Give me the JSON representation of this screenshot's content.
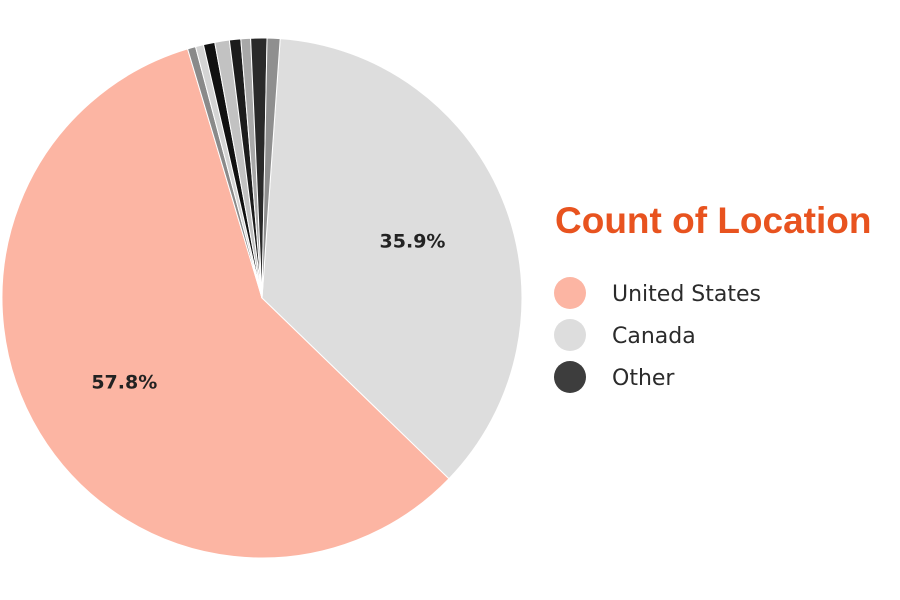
{
  "chart_data": {
    "type": "pie",
    "legend_title": "Count of Location",
    "legend_position": "right",
    "title_color": "#e8531f",
    "slices": [
      {
        "label": "Canada",
        "value": 35.9,
        "color": "#dddddd",
        "display": "35.9%",
        "show_label": true
      },
      {
        "label": "United States",
        "value": 57.8,
        "color": "#fcb5a3",
        "display": "57.8%",
        "show_label": true
      },
      {
        "label": "",
        "value": 0.5,
        "color": "#8a8a8a",
        "display": "",
        "show_label": false
      },
      {
        "label": "",
        "value": 0.5,
        "color": "#d4d4d4",
        "display": "",
        "show_label": false
      },
      {
        "label": "",
        "value": 0.7,
        "color": "#111111",
        "display": "",
        "show_label": false
      },
      {
        "label": "",
        "value": 0.9,
        "color": "#c2c2c2",
        "display": "",
        "show_label": false
      },
      {
        "label": "",
        "value": 0.7,
        "color": "#1c1c1c",
        "display": "",
        "show_label": false
      },
      {
        "label": "",
        "value": 0.6,
        "color": "#a8a8a8",
        "display": "",
        "show_label": false
      },
      {
        "label": "",
        "value": 1.0,
        "color": "#2a2a2a",
        "display": "",
        "show_label": false
      },
      {
        "label": "",
        "value": 0.8,
        "color": "#8f8f8f",
        "display": "",
        "show_label": false
      }
    ],
    "legend": [
      {
        "label": "United States",
        "color": "#fcb5a3"
      },
      {
        "label": "Canada",
        "color": "#dddddd"
      },
      {
        "label": "Other",
        "color": "#3d3d3d"
      }
    ]
  }
}
